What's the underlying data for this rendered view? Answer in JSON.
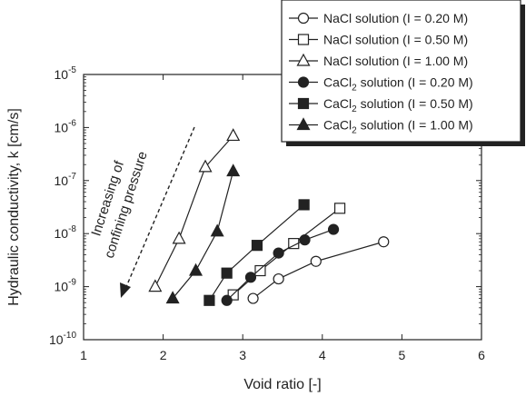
{
  "chart_data": {
    "type": "line",
    "xlabel": "Void ratio   [-]",
    "ylabel": "Hydraulic conductivity, k   [cm/s]",
    "xlim": [
      1,
      6
    ],
    "ylim": [
      1e-10,
      1e-05
    ],
    "yscale": "log",
    "x_ticks": [
      1,
      2,
      3,
      4,
      5,
      6
    ],
    "y_ticks": [
      {
        "value": 1e-10,
        "base": "10",
        "exp": "-10"
      },
      {
        "value": 1e-09,
        "base": "10",
        "exp": "-9"
      },
      {
        "value": 1e-08,
        "base": "10",
        "exp": "-8"
      },
      {
        "value": 1e-07,
        "base": "10",
        "exp": "-7"
      },
      {
        "value": 1e-06,
        "base": "10",
        "exp": "-6"
      },
      {
        "value": 1e-05,
        "base": "10",
        "exp": "-5"
      }
    ],
    "grid": false,
    "legend_position": "top-right",
    "annotation": {
      "line1": "Increasing of",
      "line2": "confining pressure"
    },
    "series": [
      {
        "name": "NaCl solution (I = 0.20 M)",
        "salt": "NaCl",
        "sub": "",
        "conc": "(I = 0.20 M)",
        "marker": "circle",
        "filled": false,
        "x": [
          3.13,
          3.45,
          3.92,
          4.77
        ],
        "y": [
          6e-10,
          1.4e-09,
          3e-09,
          7e-09
        ]
      },
      {
        "name": "NaCl solution (I = 0.50 M)",
        "salt": "NaCl",
        "sub": "",
        "conc": "(I = 0.50 M)",
        "marker": "square",
        "filled": false,
        "x": [
          2.88,
          3.22,
          3.64,
          4.22
        ],
        "y": [
          7e-10,
          2e-09,
          6.5e-09,
          3e-08
        ]
      },
      {
        "name": "NaCl solution (I = 1.00 M)",
        "salt": "NaCl",
        "sub": "",
        "conc": "(I = 1.00 M)",
        "marker": "triangle",
        "filled": false,
        "x": [
          1.9,
          2.2,
          2.53,
          2.88
        ],
        "y": [
          1e-09,
          8e-09,
          1.8e-07,
          7e-07
        ]
      },
      {
        "name": "CaCl2 solution (I = 0.20 M)",
        "salt": "CaCl",
        "sub": "2",
        "conc": "(I = 0.20 M)",
        "marker": "circle",
        "filled": true,
        "x": [
          2.8,
          3.1,
          3.45,
          3.78,
          4.14
        ],
        "y": [
          5.5e-10,
          1.5e-09,
          4.3e-09,
          7.6e-09,
          1.2e-08
        ]
      },
      {
        "name": "CaCl2 solution (I = 0.50 M)",
        "salt": "CaCl",
        "sub": "2",
        "conc": "(I = 0.50 M)",
        "marker": "square",
        "filled": true,
        "x": [
          2.58,
          2.8,
          3.18,
          3.77
        ],
        "y": [
          5.5e-10,
          1.8e-09,
          6e-09,
          3.5e-08
        ]
      },
      {
        "name": "CaCl2 solution (I = 1.00 M)",
        "salt": "CaCl",
        "sub": "2",
        "conc": "(I = 1.00 M)",
        "marker": "triangle",
        "filled": true,
        "x": [
          2.12,
          2.41,
          2.68,
          2.88
        ],
        "y": [
          6e-10,
          2e-09,
          1.1e-08,
          1.5e-07
        ]
      }
    ]
  }
}
